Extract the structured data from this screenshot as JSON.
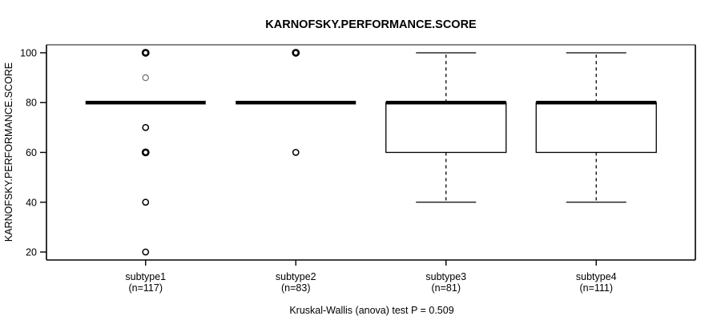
{
  "chart_data": {
    "type": "boxplot",
    "title": "KARNOFSKY.PERFORMANCE.SCORE",
    "ylabel": "KARNOFSKY.PERFORMANCE.SCORE",
    "xlabel": "",
    "caption": "Kruskal-Wallis (anova) test P = 0.509",
    "grid": false,
    "legend": "none",
    "yticks": [
      20,
      40,
      60,
      80,
      100
    ],
    "ylim": [
      16.8,
      103.2
    ],
    "xlim": [
      0.34,
      4.66
    ],
    "box_width": 0.8,
    "staple_width": 0.4,
    "categories": [
      "subtype1",
      "subtype2",
      "subtype3",
      "subtype4"
    ],
    "groups": [
      {
        "label": "subtype1",
        "sublabel": "(n=117)",
        "n": 117,
        "position": 1,
        "median": 80,
        "q1": 80,
        "q3": 80,
        "whisker_low": 80,
        "whisker_high": 80,
        "outliers": [
          {
            "value": 100,
            "style": "bold"
          },
          {
            "value": 90,
            "style": "faint"
          },
          {
            "value": 70,
            "style": "normal"
          },
          {
            "value": 60,
            "style": "bold"
          },
          {
            "value": 40,
            "style": "normal"
          },
          {
            "value": 20,
            "style": "normal"
          }
        ]
      },
      {
        "label": "subtype2",
        "sublabel": "(n=83)",
        "n": 83,
        "position": 2,
        "median": 80,
        "q1": 80,
        "q3": 80,
        "whisker_low": 80,
        "whisker_high": 80,
        "outliers": [
          {
            "value": 100,
            "style": "bold"
          },
          {
            "value": 60,
            "style": "normal"
          }
        ]
      },
      {
        "label": "subtype3",
        "sublabel": "(n=81)",
        "n": 81,
        "position": 3,
        "median": 80,
        "q1": 60,
        "q3": 80,
        "whisker_low": 40,
        "whisker_high": 100,
        "outliers": []
      },
      {
        "label": "subtype4",
        "sublabel": "(n=111)",
        "n": 111,
        "position": 4,
        "median": 80,
        "q1": 60,
        "q3": 80,
        "whisker_low": 40,
        "whisker_high": 100,
        "outliers": []
      }
    ],
    "colors": {
      "box_stroke": "#000000",
      "median": "#000000",
      "outlier_normal": "#000000",
      "outlier_faint": "#6e6e6e",
      "axis": "#000000",
      "border_top": "#878787",
      "background": "#ffffff",
      "text": "#000000"
    }
  }
}
